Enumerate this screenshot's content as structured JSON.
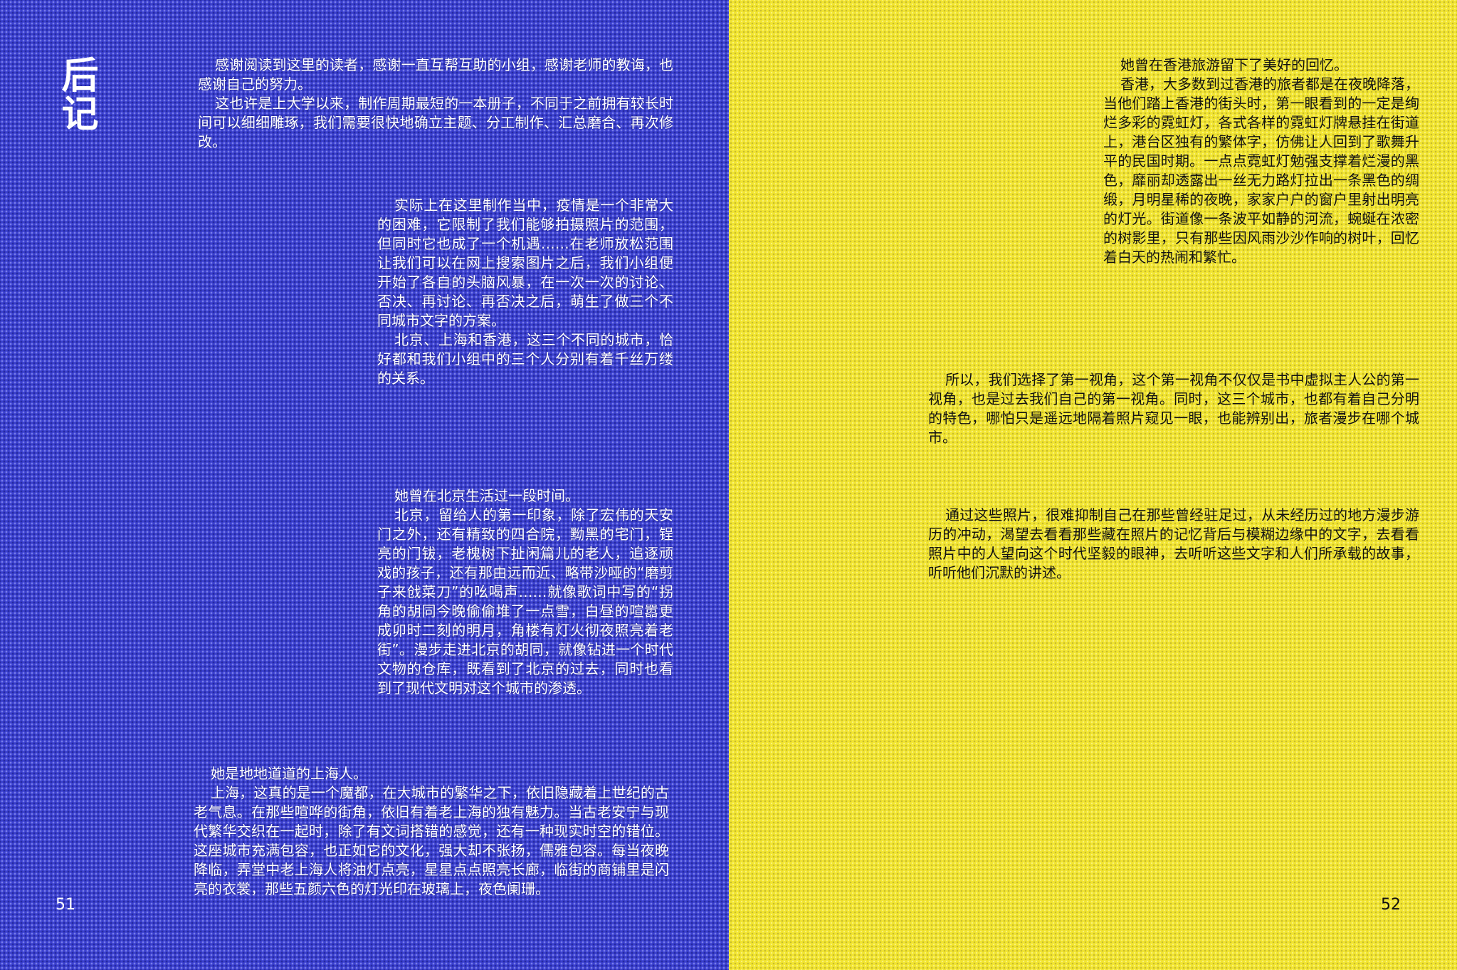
{
  "left_page": {
    "heading": "后记",
    "page_number": "51",
    "bg_color": "#3a3fcf",
    "blocks": [
      {
        "paragraphs": [
          "感谢阅读到这里的读者，感谢一直互帮互助的小组，感谢老师的教诲，也感谢自己的努力。",
          "这也许是上大学以来，制作周期最短的一本册子，不同于之前拥有较长时间可以细细雕琢，我们需要很快地确立主题、分工制作、汇总磨合、再次修改。"
        ]
      },
      {
        "paragraphs": [
          "实际上在这里制作当中，疫情是一个非常大的困难，它限制了我们能够拍摄照片的范围，但同时它也成了一个机遇……在老师放松范围让我们可以在网上搜索图片之后，我们小组便开始了各自的头脑风暴，在一次一次的讨论、否决、再讨论、再否决之后，萌生了做三个不同城市文字的方案。",
          "北京、上海和香港，这三个不同的城市，恰好都和我们小组中的三个人分别有着千丝万缕的关系。"
        ]
      },
      {
        "paragraphs": [
          "她曾在北京生活过一段时间。",
          "北京，留给人的第一印象，除了宏伟的天安门之外，还有精致的四合院，黝黑的宅门，锃亮的门钹，老槐树下扯闲篇儿的老人，追逐顽戏的孩子，还有那由远而近、略带沙哑的“磨剪子来戗菜刀”的吆喝声……就像歌词中写的“拐角的胡同今晚偷偷堆了一点雪，白昼的喧嚣更成卯时二刻的明月，角楼有灯火彻夜照亮着老街”。漫步走进北京的胡同，就像钻进一个时代文物的仓库，既看到了北京的过去，同时也看到了现代文明对这个城市的渗透。"
        ]
      },
      {
        "paragraphs": [
          "她是地地道道的上海人。",
          "上海，这真的是一个魔都，在大城市的繁华之下，依旧隐藏着上世纪的古老气息。在那些喧哗的街角，依旧有着老上海的独有魅力。当古老安宁与现代繁华交织在一起时，除了有文词搭错的感觉，还有一种现实时空的错位。这座城市充满包容，也正如它的文化，强大却不张扬，儒雅包容。每当夜晚降临，弄堂中老上海人将油灯点亮，星星点点照亮长廊，临街的商铺里是闪亮的衣裳，那些五颜六色的灯光印在玻璃上，夜色阑珊。"
        ]
      }
    ]
  },
  "right_page": {
    "page_number": "52",
    "bg_color": "#f2e531",
    "blocks": [
      {
        "paragraphs": [
          "她曾在香港旅游留下了美好的回忆。",
          "香港，大多数到过香港的旅者都是在夜晚降落，当他们踏上香港的街头时，第一眼看到的一定是绚烂多彩的霓虹灯，各式各样的霓虹灯牌悬挂在街道上，港台区独有的繁体字，仿佛让人回到了歌舞升平的民国时期。一点点霓虹灯勉强支撑着烂漫的黑色，靡丽却透露出一丝无力路灯拉出一条黑色的绸缎，月明星稀的夜晚，家家户户的窗户里射出明亮的灯光。街道像一条波平如静的河流，蜿蜒在浓密的树影里，只有那些因风雨沙沙作响的树叶，回忆着白天的热闹和繁忙。"
        ]
      },
      {
        "paragraphs": [
          "所以，我们选择了第一视角，这个第一视角不仅仅是书中虚拟主人公的第一视角，也是过去我们自己的第一视角。同时，这三个城市，也都有着自己分明的特色，哪怕只是遥远地隔着照片窥见一眼，也能辨别出，旅者漫步在哪个城市。"
        ]
      },
      {
        "paragraphs": [
          "通过这些照片，很难抑制自己在那些曾经驻足过，从未经历过的地方漫步游历的冲动，渴望去看看那些藏在照片的记忆背后与模糊边缘中的文字，去看看照片中的人望向这个时代坚毅的眼神，去听听这些文字和人们所承载的故事，听听他们沉默的讲述。"
        ]
      }
    ]
  }
}
